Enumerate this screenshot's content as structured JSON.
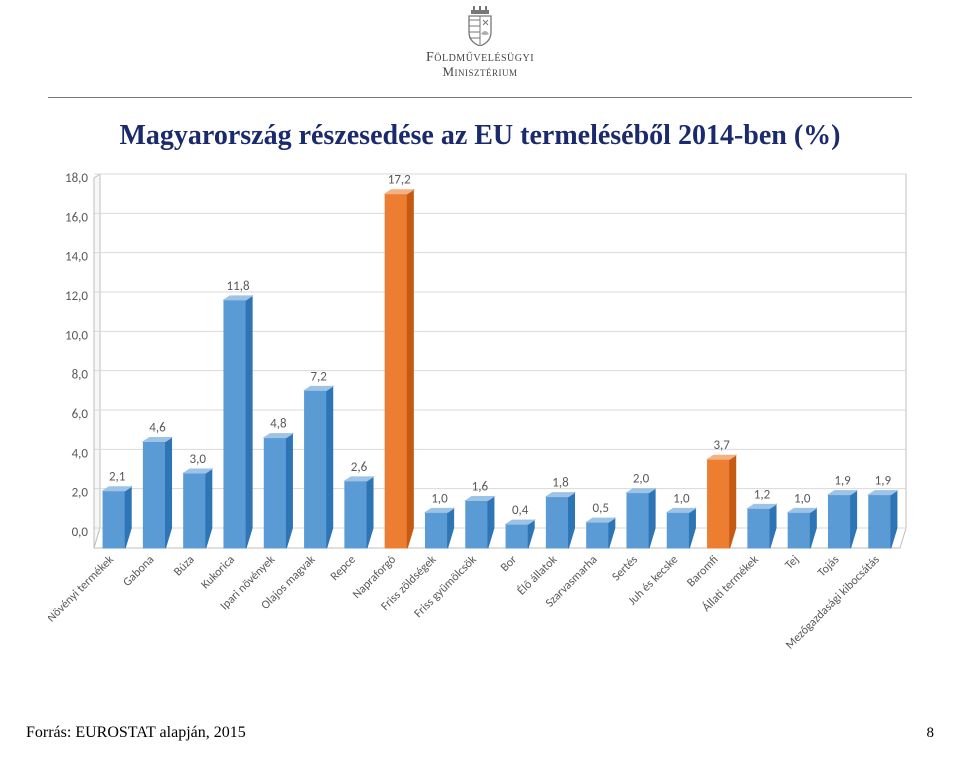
{
  "header": {
    "ministry_line1": "Földművelésügyi",
    "ministry_line2": "Minisztérium"
  },
  "title": "Magyarország részesedése az EU termeléséből 2014-ben (%)",
  "chart": {
    "type": "bar",
    "ylim": [
      0,
      18
    ],
    "ytick_step": 2,
    "yticks": [
      "0,0",
      "2,0",
      "4,0",
      "6,0",
      "8,0",
      "10,0",
      "12,0",
      "14,0",
      "16,0",
      "18,0"
    ],
    "categories": [
      "Növényi termékek",
      "Gabona",
      "Búza",
      "Kukorica",
      "Ipari növények",
      "Olajos magvak",
      "Repce",
      "Napraforgó",
      "Friss zöldségek",
      "Friss gyümölcsök",
      "Bor",
      "Élő állatok",
      "Szarvasmarha",
      "Sertés",
      "Juh és kecske",
      "Baromfi",
      "Állati termékek",
      "Tej",
      "Tojás",
      "Mezőgazdasági kibocsátás"
    ],
    "values": [
      2.1,
      4.6,
      3.0,
      11.8,
      4.8,
      7.2,
      2.6,
      17.2,
      1.0,
      1.6,
      0.4,
      1.8,
      0.5,
      2.0,
      1.0,
      3.7,
      1.2,
      1.0,
      1.9,
      1.9
    ],
    "value_labels": [
      "2,1",
      "4,6",
      "3,0",
      "11,8",
      "4,8",
      "7,2",
      "2,6",
      "17,2",
      "1,0",
      "1,6",
      "0,4",
      "1,8",
      "0,5",
      "2,0",
      "1,0",
      "3,7",
      "1,2",
      "1,0",
      "1,9",
      "1,9"
    ],
    "highlight_indices": [
      7,
      15
    ],
    "bar_fill": "#5b9bd5",
    "bar_fill_side": "#2e75b6",
    "bar_fill_top": "#9dc3e6",
    "highlight_fill": "#ed7d31",
    "highlight_fill_side": "#c55a11",
    "highlight_fill_top": "#f4b183",
    "back_wall": "#ffffff",
    "floor": "#ffffff",
    "grid_color": "#d9d9d9",
    "axis_color": "#bfbfbf",
    "title_color": "#1a2a6c",
    "title_fontsize": 28,
    "label_fontsize": 13,
    "bar_width_ratio": 0.55,
    "depth_dx": 6,
    "depth_dy": -4
  },
  "footer": {
    "source": "Forrás: EUROSTAT alapján, 2015",
    "page": "8"
  }
}
